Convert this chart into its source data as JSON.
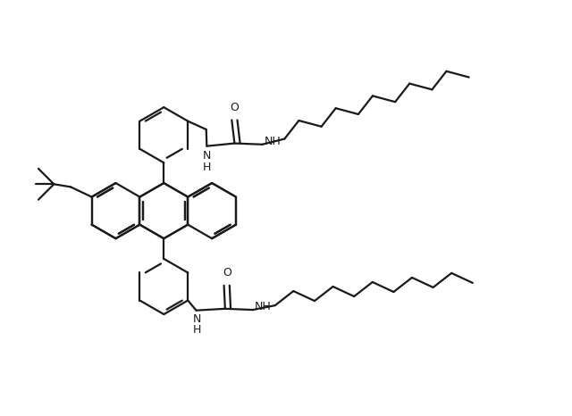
{
  "bg_color": "#ffffff",
  "line_color": "#1a1a1a",
  "line_width": 1.6,
  "figsize": [
    6.4,
    4.66
  ],
  "dpi": 100,
  "xlim": [
    0,
    10
  ],
  "ylim": [
    0,
    7.5
  ]
}
